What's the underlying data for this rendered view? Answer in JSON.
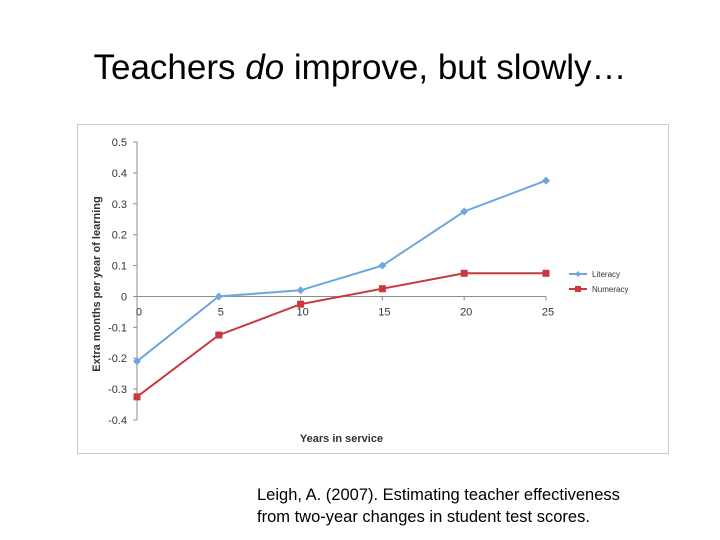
{
  "slide": {
    "title_before": "Teachers ",
    "title_emphasis": "do",
    "title_after": " improve, but slowly…",
    "citation_line1": "Leigh, A. (2007). Estimating teacher effectiveness",
    "citation_line2": "from two-year changes in student test scores."
  },
  "chart_data": {
    "type": "line",
    "title": "",
    "xlabel": "Years in service",
    "ylabel": "Extra months per year of learning",
    "x": [
      0,
      5,
      10,
      15,
      20,
      25
    ],
    "x_tick_labels": [
      "0",
      "5",
      "10",
      "15",
      "20",
      "25"
    ],
    "xlim": [
      0,
      25
    ],
    "ylim": [
      -0.4,
      0.5
    ],
    "y_ticks": [
      0.5,
      0.4,
      0.3,
      0.2,
      0.1,
      0,
      -0.1,
      -0.2,
      -0.3,
      -0.4
    ],
    "y_tick_labels": [
      "0.5",
      "0.4",
      "0.3",
      "0.2",
      "0.1",
      "0",
      "-0.1",
      "-0.2",
      "-0.3",
      "-0.4"
    ],
    "grid": false,
    "legend_position": "right",
    "series": [
      {
        "name": "Literacy",
        "color": "#6ea6dd",
        "marker": "diamond",
        "values": [
          -0.21,
          0.0,
          0.02,
          0.1,
          0.275,
          0.375
        ]
      },
      {
        "name": "Numeracy",
        "color": "#c8383c",
        "marker": "square",
        "values": [
          -0.325,
          -0.125,
          -0.025,
          0.025,
          0.075,
          0.075
        ]
      }
    ]
  }
}
